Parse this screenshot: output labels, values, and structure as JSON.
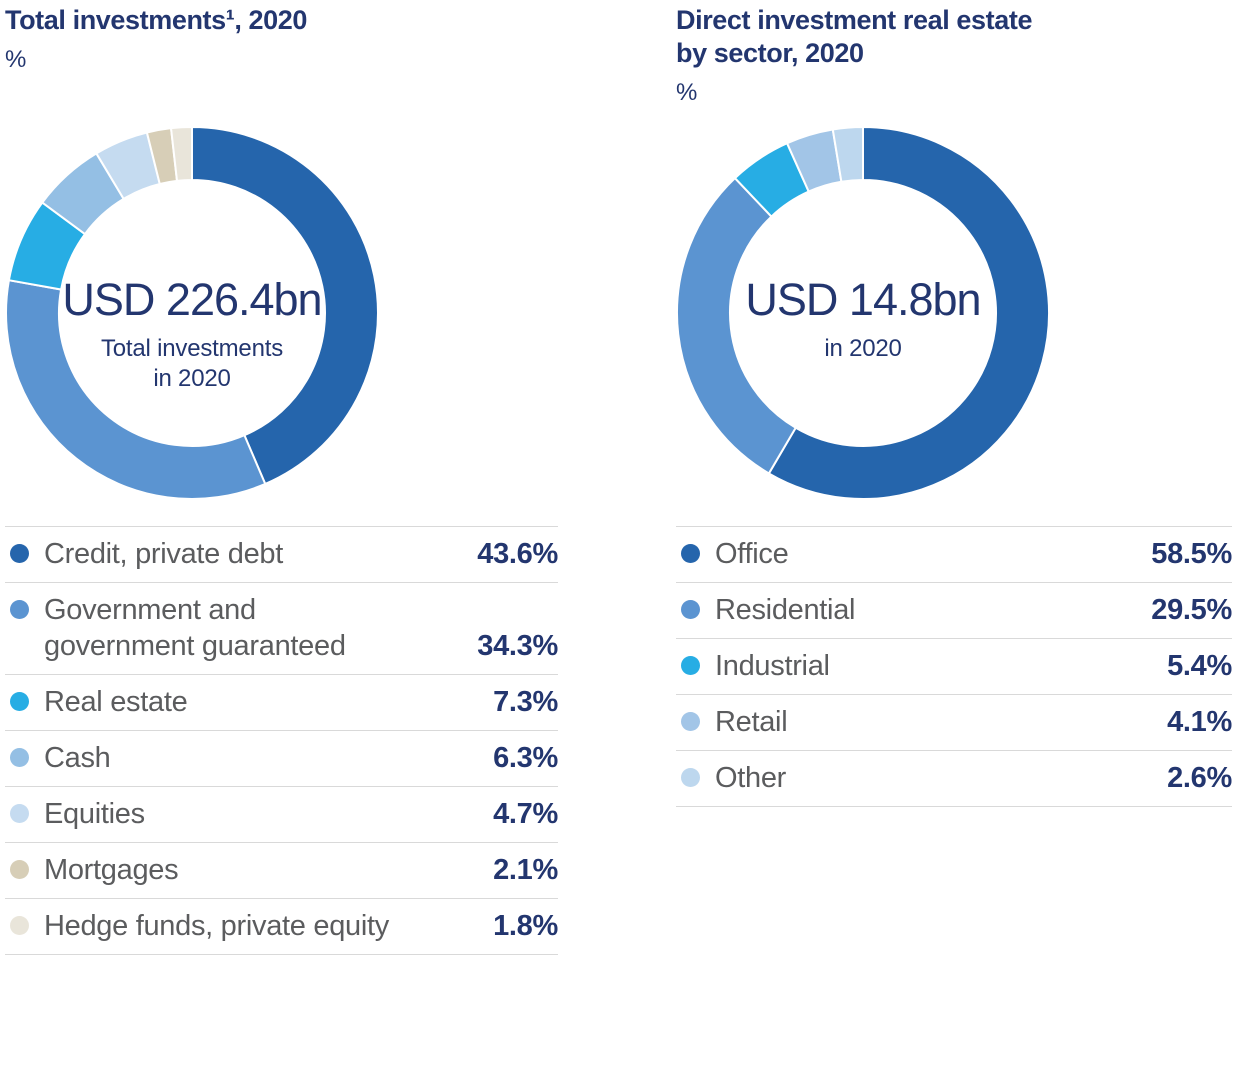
{
  "colors": {
    "navy_text": "#23366f",
    "label_gray": "#5b5c5e",
    "divider_gray": "#d9d9d9",
    "background": "#ffffff"
  },
  "chart_data": [
    {
      "type": "pie",
      "subtype": "donut",
      "title": "Total investments¹, 2020",
      "unit": "%",
      "center_label": "USD 226.4bn",
      "center_sublabel": "Total investments\nin 2020",
      "start_angle_deg": 0,
      "direction": "clockwise",
      "legend_position": "bottom",
      "segments": [
        {
          "label": "Credit, private debt",
          "display_label": "Credit, private debt",
          "value": 43.6,
          "display_value": "43.6%",
          "color": "#2565ac"
        },
        {
          "label": "Government and government guaranteed",
          "display_label": "Government and\ngovernment guaranteed",
          "value": 34.3,
          "display_value": "34.3%",
          "color": "#5b94d1"
        },
        {
          "label": "Real estate",
          "display_label": "Real estate",
          "value": 7.3,
          "display_value": "7.3%",
          "color": "#27ade4"
        },
        {
          "label": "Cash",
          "display_label": "Cash",
          "value": 6.3,
          "display_value": "6.3%",
          "color": "#94bfe4"
        },
        {
          "label": "Equities",
          "display_label": "Equities",
          "value": 4.7,
          "display_value": "4.7%",
          "color": "#c5dbf0"
        },
        {
          "label": "Mortgages",
          "display_label": "Mortgages",
          "value": 2.1,
          "display_value": "2.1%",
          "color": "#d7ceb7"
        },
        {
          "label": "Hedge funds, private equity",
          "display_label": "Hedge funds, private equity",
          "value": 1.8,
          "display_value": "1.8%",
          "color": "#e9e5da"
        }
      ]
    },
    {
      "type": "pie",
      "subtype": "donut",
      "title": "Direct investment real estate\nby sector, 2020",
      "unit": "%",
      "center_label": "USD 14.8bn",
      "center_sublabel": "in 2020",
      "start_angle_deg": 0,
      "direction": "clockwise",
      "legend_position": "bottom",
      "segments": [
        {
          "label": "Office",
          "display_label": "Office",
          "value": 58.5,
          "display_value": "58.5%",
          "color": "#2565ac"
        },
        {
          "label": "Residential",
          "display_label": "Residential",
          "value": 29.5,
          "display_value": "29.5%",
          "color": "#5b94d1"
        },
        {
          "label": "Industrial",
          "display_label": "Industrial",
          "value": 5.4,
          "display_value": "5.4%",
          "color": "#27ade4"
        },
        {
          "label": "Retail",
          "display_label": "Retail",
          "value": 4.1,
          "display_value": "4.1%",
          "color": "#a2c5e7"
        },
        {
          "label": "Other",
          "display_label": "Other",
          "value": 2.6,
          "display_value": "2.6%",
          "color": "#bdd7ee"
        }
      ]
    }
  ]
}
